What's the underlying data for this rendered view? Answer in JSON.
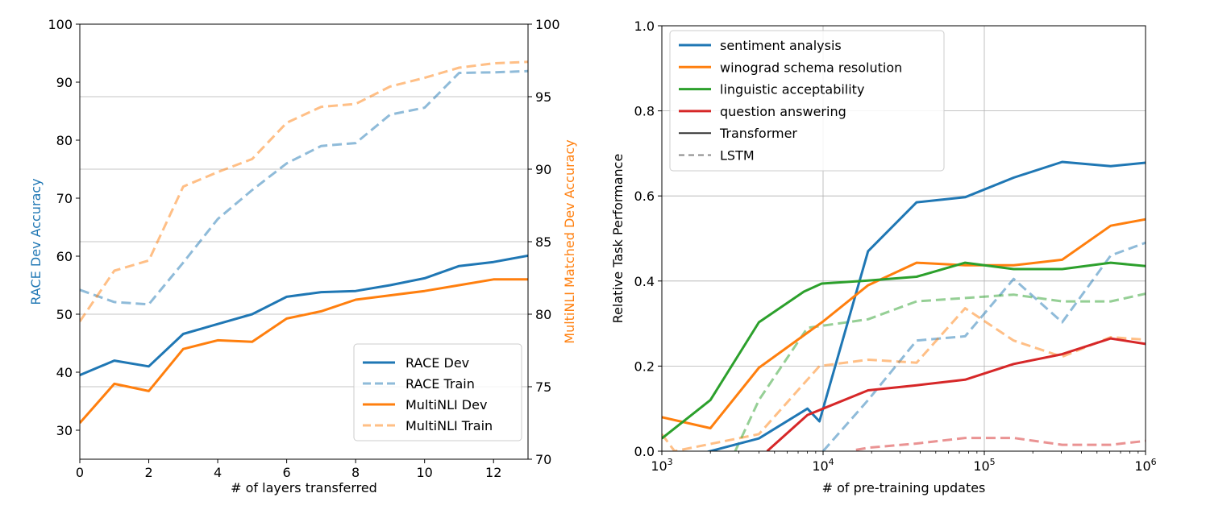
{
  "chart_data": [
    {
      "type": "line",
      "xlabel": "# of layers transferred",
      "ylabel_left": "RACE Dev Accuracy",
      "ylabel_right": "MultiNLI Matched Dev Accuracy",
      "xlim": [
        0,
        13
      ],
      "ylim_left": [
        25,
        100
      ],
      "ylim_right": [
        70,
        100
      ],
      "xticks": [
        "0",
        "2",
        "4",
        "6",
        "8",
        "10",
        "12"
      ],
      "yticks_left": [
        "30",
        "40",
        "50",
        "60",
        "70",
        "80",
        "90",
        "100"
      ],
      "yticks_right": [
        "70",
        "75",
        "80",
        "85",
        "90",
        "95",
        "100"
      ],
      "grid": "horizontal, right axis",
      "legend_position": "lower-right",
      "colors": {
        "left_axis": "#1f77b4",
        "right_axis": "#ff7f0e"
      },
      "x": [
        0,
        1,
        2,
        3,
        4,
        5,
        6,
        7,
        8,
        9,
        10,
        11,
        12,
        13
      ],
      "series": [
        {
          "name": "RACE Dev",
          "axis": "left",
          "color": "#1f77b4",
          "style": "solid",
          "opacity": 1,
          "values": [
            39.5,
            42.0,
            41.0,
            46.6,
            48.3,
            50.0,
            53.0,
            53.8,
            54.0,
            55.0,
            56.2,
            58.3,
            59.0,
            60.1
          ]
        },
        {
          "name": "RACE Train",
          "axis": "left",
          "color": "#1f77b4",
          "style": "dashed",
          "opacity": 0.5,
          "values": [
            54.2,
            52.1,
            51.7,
            58.9,
            66.4,
            71.4,
            76.0,
            79.0,
            79.5,
            84.4,
            85.6,
            91.6,
            91.7,
            91.9
          ]
        },
        {
          "name": "MultiNLI Dev",
          "axis": "right",
          "color": "#ff7f0e",
          "style": "solid",
          "opacity": 1,
          "values": [
            72.5,
            75.2,
            74.7,
            77.6,
            78.2,
            78.1,
            79.7,
            80.2,
            81.0,
            81.3,
            81.6,
            82.0,
            82.4,
            82.4
          ]
        },
        {
          "name": "MultiNLI Train",
          "axis": "right",
          "color": "#ff7f0e",
          "style": "dashed",
          "opacity": 0.5,
          "values": [
            79.5,
            83.0,
            83.7,
            88.8,
            89.8,
            90.7,
            93.2,
            94.3,
            94.5,
            95.7,
            96.3,
            97.0,
            97.3,
            97.4
          ]
        }
      ]
    },
    {
      "type": "line",
      "xlabel": "# of pre-training updates",
      "ylabel": "Relative Task Performance",
      "xscale": "log",
      "xlim": [
        1000,
        1000000
      ],
      "ylim": [
        0,
        1.0
      ],
      "xticks": [
        {
          "value": 1000,
          "base": "10",
          "exp": "3"
        },
        {
          "value": 10000,
          "base": "10",
          "exp": "4"
        },
        {
          "value": 100000,
          "base": "10",
          "exp": "5"
        },
        {
          "value": 1000000,
          "base": "10",
          "exp": "6"
        }
      ],
      "yticks": [
        "0.0",
        "0.2",
        "0.4",
        "0.6",
        "0.8",
        "1.0"
      ],
      "grid": "both",
      "legend_position": "upper-left",
      "legend_extra": [
        {
          "name": "Transformer",
          "style": "solid",
          "color": "#333333"
        },
        {
          "name": "LSTM",
          "style": "dashed",
          "color": "#888888"
        }
      ],
      "series": [
        {
          "name": "sentiment analysis",
          "model": "Transformer",
          "color": "#1f77b4",
          "style": "solid",
          "opacity": 1,
          "x": [
            1000,
            2000,
            4000,
            8000,
            9500,
            19000,
            38000,
            76000,
            152000,
            304000,
            608000,
            1000000
          ],
          "values": [
            -0.03,
            0.0,
            0.03,
            0.1,
            0.07,
            0.47,
            0.585,
            0.597,
            0.643,
            0.68,
            0.67,
            0.678
          ]
        },
        {
          "name": "winograd schema resolution",
          "model": "Transformer",
          "color": "#ff7f0e",
          "style": "solid",
          "opacity": 1,
          "x": [
            1000,
            2000,
            4000,
            10000,
            19000,
            38000,
            76000,
            152000,
            304000,
            608000,
            1000000
          ],
          "values": [
            0.08,
            0.054,
            0.196,
            0.305,
            0.39,
            0.443,
            0.437,
            0.437,
            0.45,
            0.53,
            0.545
          ]
        },
        {
          "name": "linguistic acceptability",
          "model": "Transformer",
          "color": "#2ca02c",
          "style": "solid",
          "opacity": 1,
          "x": [
            1000,
            2000,
            4000,
            7600,
            9800,
            19000,
            38000,
            76000,
            152000,
            304000,
            608000,
            1000000
          ],
          "values": [
            0.03,
            0.12,
            0.303,
            0.375,
            0.394,
            0.401,
            0.41,
            0.443,
            0.428,
            0.428,
            0.443,
            0.435
          ]
        },
        {
          "name": "question answering",
          "model": "Transformer",
          "color": "#d62728",
          "style": "solid",
          "opacity": 1,
          "x": [
            4500,
            8000,
            10000,
            19000,
            38000,
            76000,
            152000,
            304000,
            608000,
            1000000
          ],
          "values": [
            0.0,
            0.085,
            0.1,
            0.143,
            0.155,
            0.168,
            0.205,
            0.228,
            0.265,
            0.252
          ]
        },
        {
          "name": "sentiment analysis",
          "model": "LSTM",
          "color": "#1f77b4",
          "style": "dashed",
          "opacity": 0.5,
          "x": [
            10000,
            19000,
            38000,
            76000,
            152000,
            304000,
            608000,
            1000000
          ],
          "values": [
            0.0,
            0.12,
            0.26,
            0.27,
            0.405,
            0.303,
            0.46,
            0.49
          ]
        },
        {
          "name": "winograd schema resolution",
          "model": "LSTM",
          "color": "#ff7f0e",
          "style": "dashed",
          "opacity": 0.5,
          "x": [
            1000,
            1200,
            4000,
            9500,
            19000,
            38000,
            76000,
            152000,
            304000,
            608000,
            1000000
          ],
          "values": [
            0.04,
            0.0,
            0.04,
            0.2,
            0.215,
            0.208,
            0.336,
            0.26,
            0.222,
            0.268,
            0.262
          ]
        },
        {
          "name": "linguistic acceptability",
          "model": "LSTM",
          "color": "#2ca02c",
          "style": "dashed",
          "opacity": 0.5,
          "x": [
            2850,
            4000,
            8000,
            10000,
            19000,
            38000,
            76000,
            152000,
            304000,
            608000,
            1000000
          ],
          "values": [
            0.0,
            0.12,
            0.29,
            0.295,
            0.31,
            0.352,
            0.36,
            0.368,
            0.352,
            0.352,
            0.37
          ]
        },
        {
          "name": "question answering",
          "model": "LSTM",
          "color": "#d62728",
          "style": "dashed",
          "opacity": 0.5,
          "x": [
            16000,
            19000,
            38000,
            76000,
            152000,
            304000,
            608000,
            1000000
          ],
          "values": [
            0.003,
            0.008,
            0.018,
            0.031,
            0.031,
            0.015,
            0.015,
            0.024
          ]
        }
      ]
    }
  ]
}
